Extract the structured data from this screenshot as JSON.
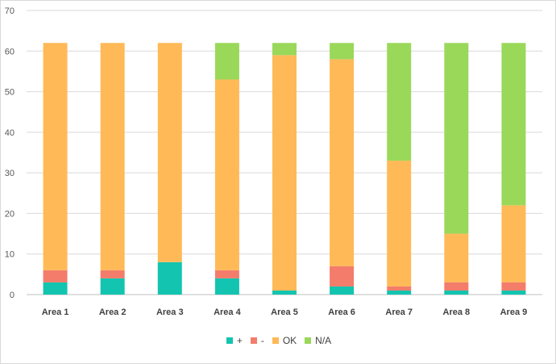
{
  "chart_data": {
    "type": "bar",
    "stacked": true,
    "categories": [
      "Area 1",
      "Area 2",
      "Area 3",
      "Area 4",
      "Area 5",
      "Area 6",
      "Area 7",
      "Area 8",
      "Area 9"
    ],
    "series": [
      {
        "name": "+",
        "color": "#13c4b0",
        "values": [
          3,
          4,
          8,
          4,
          1,
          2,
          1,
          1,
          1
        ]
      },
      {
        "name": "-",
        "color": "#f47c6b",
        "values": [
          3,
          2,
          0,
          2,
          0,
          5,
          1,
          2,
          2
        ]
      },
      {
        "name": "OK",
        "color": "#ffb957",
        "values": [
          56,
          56,
          54,
          47,
          58,
          51,
          31,
          12,
          19
        ]
      },
      {
        "name": "N/A",
        "color": "#9ad85a",
        "values": [
          0,
          0,
          0,
          9,
          3,
          4,
          29,
          47,
          40
        ]
      }
    ],
    "title": "",
    "xlabel": "",
    "ylabel": "",
    "ylim": [
      0,
      70
    ],
    "yticks": [
      0,
      10,
      20,
      30,
      40,
      50,
      60,
      70
    ],
    "grid": true,
    "legend_position": "bottom"
  }
}
